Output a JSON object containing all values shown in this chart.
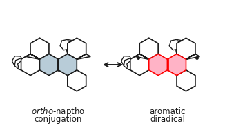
{
  "bg_color": "#ffffff",
  "left_hex_fill": "#b8ccd8",
  "left_hex_stroke": "#1a1a1a",
  "right_hex_fill": "#ffb3c6",
  "right_hex_stroke": "#ff0000",
  "black": "#1a1a1a",
  "white": "#ffffff",
  "left_label_line1": "$\\it{ortho}$-naptho",
  "left_label_line2": "conjugation",
  "right_label_line1": "aromatic",
  "right_label_line2": "diradical",
  "lw": 1.2,
  "lw_bold": 2.0,
  "fig_width": 3.26,
  "fig_height": 1.89,
  "dpi": 100
}
